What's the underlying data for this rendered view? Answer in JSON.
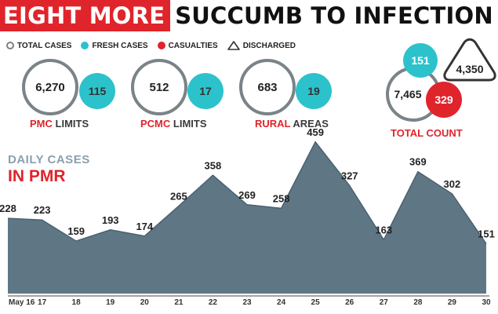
{
  "headline": {
    "highlight": "EIGHT MORE",
    "rest": "SUCCUMB TO INFECTION"
  },
  "legend": [
    {
      "key": "total",
      "label": "TOTAL CASES"
    },
    {
      "key": "fresh",
      "label": "FRESH CASES"
    },
    {
      "key": "casualties",
      "label": "CASUALTIES"
    },
    {
      "key": "discharged",
      "label": "DISCHARGED"
    }
  ],
  "colors": {
    "red": "#e0242b",
    "teal": "#2cc2cc",
    "area": "#5f7785",
    "ring": "#7a8388"
  },
  "regions": [
    {
      "name_highlight": "PMC",
      "name_rest": "LIMITS",
      "total": "6,270",
      "fresh": "115"
    },
    {
      "name_highlight": "PCMC",
      "name_rest": "LIMITS",
      "total": "512",
      "fresh": "17"
    },
    {
      "name_highlight": "RURAL",
      "name_rest": "AREAS",
      "total": "683",
      "fresh": "19"
    }
  ],
  "total_count": {
    "label": "TOTAL COUNT",
    "total": "7,465",
    "fresh": "151",
    "casualties": "329",
    "discharged": "4,350"
  },
  "chart_data": {
    "type": "area",
    "title": "DAILY CASES",
    "subtitle": "IN PMR",
    "categories": [
      "May 16",
      "17",
      "18",
      "19",
      "20",
      "21",
      "22",
      "23",
      "24",
      "25",
      "26",
      "27",
      "28",
      "29",
      "30"
    ],
    "values": [
      228,
      223,
      159,
      193,
      174,
      265,
      358,
      269,
      258,
      459,
      327,
      163,
      369,
      302,
      151
    ],
    "xlabel": "",
    "ylabel": "",
    "ylim": [
      0,
      480
    ],
    "grid": false
  }
}
